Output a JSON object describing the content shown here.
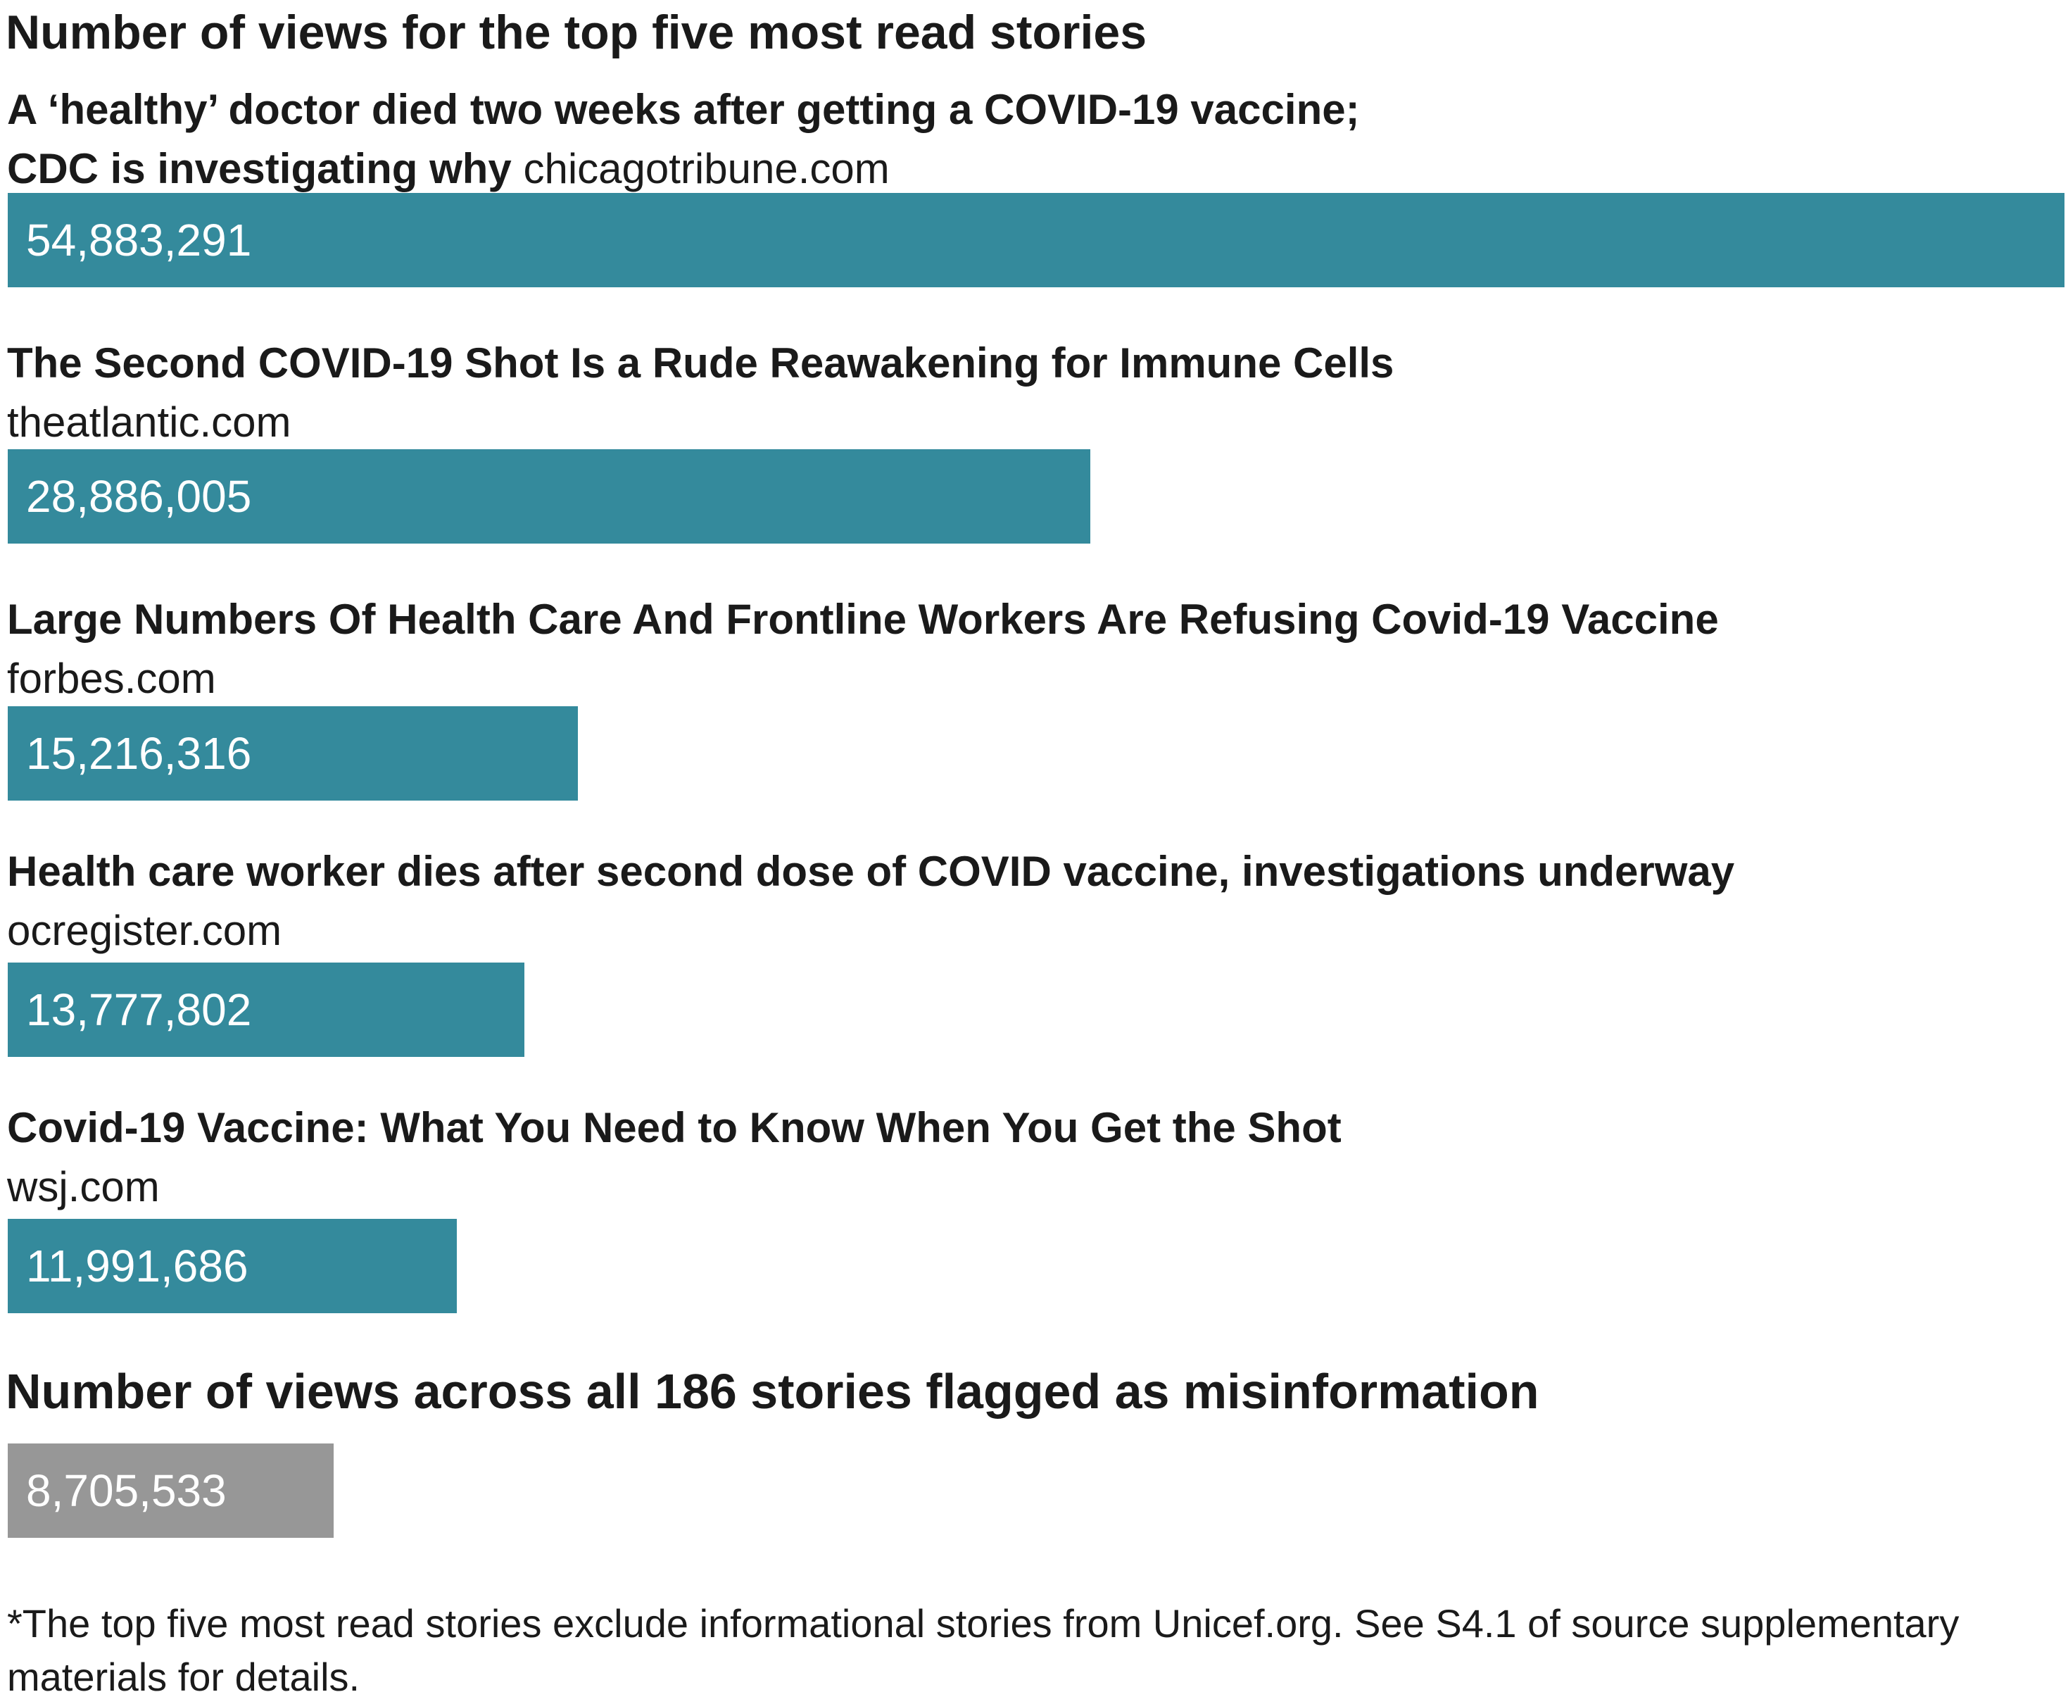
{
  "chart_data": {
    "type": "bar",
    "orientation": "horizontal",
    "title": "Number of views for the top five most read stories",
    "categories": [
      {
        "headline_lines": [
          "A ‘healthy’ doctor died two weeks after getting a COVID-19 vaccine;",
          "CDC is investigating why"
        ],
        "domain": "chicagotribune.com"
      },
      {
        "headline_lines": [
          "The Second COVID-19 Shot Is a Rude Reawakening for Immune Cells"
        ],
        "domain": "theatlantic.com"
      },
      {
        "headline_lines": [
          "Large Numbers Of Health Care And Frontline Workers Are Refusing Covid-19 Vaccine"
        ],
        "domain": "forbes.com"
      },
      {
        "headline_lines": [
          "Health care worker dies after second dose of COVID vaccine, investigations underway"
        ],
        "domain": "ocregister.com"
      },
      {
        "headline_lines": [
          "Covid-19 Vaccine: What You Need to Know When You Get the Shot"
        ],
        "domain": "wsj.com"
      }
    ],
    "values": [
      54883291,
      28886005,
      15216316,
      13777802,
      11991686
    ],
    "value_labels": [
      "54,883,291",
      "28,886,005",
      "15,216,316",
      "13,777,802",
      "11,991,686"
    ],
    "bar_color": "#348a9c",
    "xlim": [
      0,
      54883291
    ],
    "comparison": {
      "title": "Number of views across all 186 stories flagged as misinformation",
      "value": 8705533,
      "value_label": "8,705,533",
      "bar_color": "#979797"
    },
    "footnote": "*The top five most read stories exclude informational stories from Unicef.org. See S4.1 of source supplementary materials for details."
  }
}
